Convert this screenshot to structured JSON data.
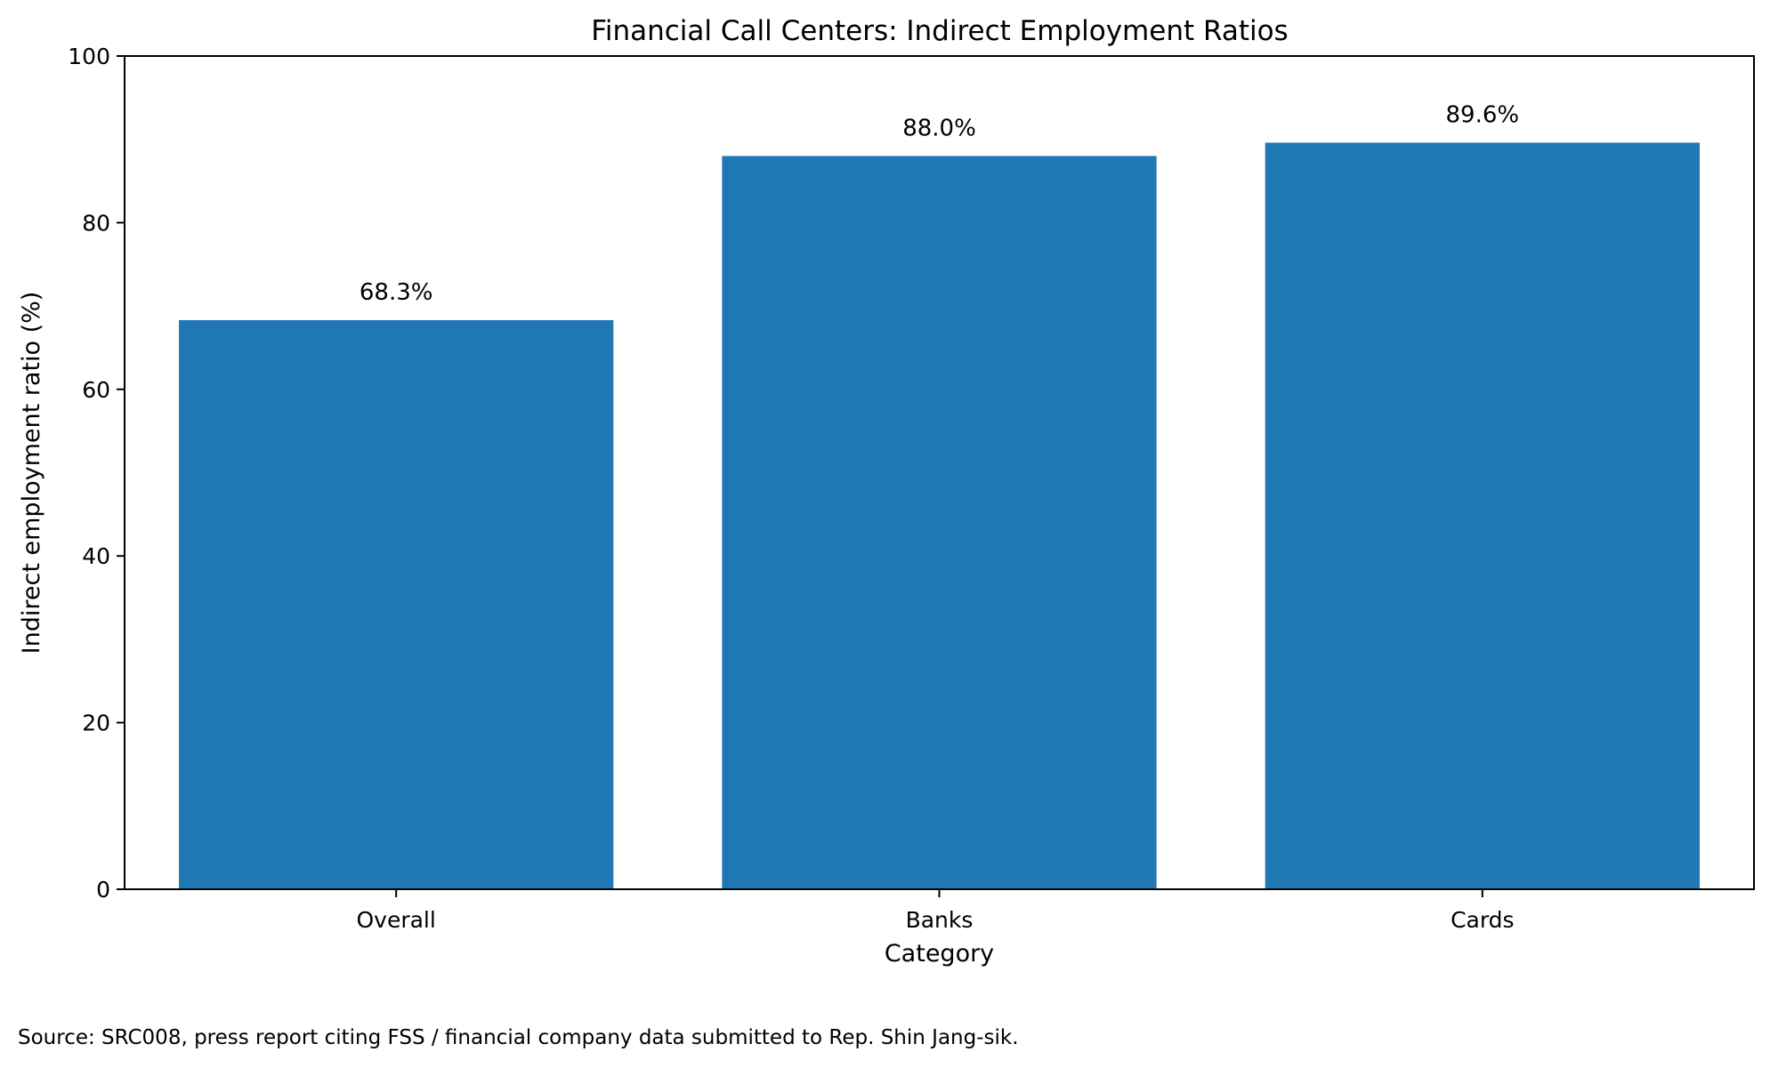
{
  "colors": {
    "bar": "#1f77b4",
    "axis": "#000000",
    "text": "#000000",
    "background": "#ffffff"
  },
  "source_note": "Source: SRC008, press report citing FSS / financial company data submitted to Rep. Shin Jang-sik.",
  "chart_data": {
    "type": "bar",
    "title": "Financial Call Centers: Indirect Employment Ratios",
    "xlabel": "Category",
    "ylabel": "Indirect employment ratio (%)",
    "categories": [
      "Overall",
      "Banks",
      "Cards"
    ],
    "values": [
      68.3,
      88.0,
      89.6
    ],
    "data_labels": [
      "68.3%",
      "88.0%",
      "89.6%"
    ],
    "ylim": [
      0,
      100
    ],
    "yticks": [
      0,
      20,
      40,
      60,
      80,
      100
    ],
    "grid": false,
    "legend": "none"
  }
}
